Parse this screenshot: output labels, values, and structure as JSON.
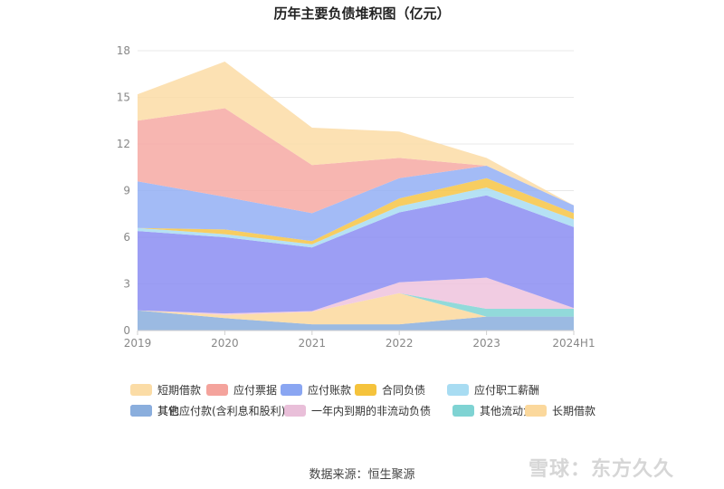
{
  "chart_data": {
    "type": "area",
    "title": "历年主要负债堆积图（亿元）",
    "categories": [
      "2019",
      "2020",
      "2021",
      "2022",
      "2023",
      "2024H1"
    ],
    "ylim": [
      0,
      18
    ],
    "yticks": [
      0,
      3,
      6,
      9,
      12,
      15,
      18
    ],
    "grid": true,
    "legend_position": "bottom",
    "series": [
      {
        "name": "其它",
        "color": "#8aaedd",
        "values": [
          1.3,
          0.8,
          0.4,
          0.4,
          0.9,
          0.9
        ]
      },
      {
        "name": "长期借款",
        "color": "#fbd89c",
        "values": [
          0.0,
          0.2,
          0.8,
          2.0,
          0.0,
          0.0
        ]
      },
      {
        "name": "其他流动负债",
        "color": "#7fd3d3",
        "values": [
          0.0,
          0.0,
          0.0,
          0.0,
          0.5,
          0.5
        ]
      },
      {
        "name": "一年内到期的非流动负债",
        "color": "#eec3dd",
        "values": [
          0.0,
          0.1,
          0.05,
          0.7,
          2.0,
          0.05
        ]
      },
      {
        "name": "其他应付款(含利息和股利)",
        "color": "#8b8df2",
        "values": [
          5.1,
          4.9,
          4.1,
          4.5,
          5.3,
          5.2
        ]
      },
      {
        "name": "应付职工薪酬",
        "color": "#a8dcf2",
        "values": [
          0.2,
          0.2,
          0.2,
          0.4,
          0.5,
          0.5
        ]
      },
      {
        "name": "合同负债",
        "color": "#f6c445",
        "values": [
          0.0,
          0.3,
          0.2,
          0.5,
          0.6,
          0.4
        ]
      },
      {
        "name": "应付账款",
        "color": "#93aff5",
        "values": [
          3.0,
          2.1,
          1.8,
          1.3,
          0.8,
          0.5
        ]
      },
      {
        "name": "应付票据",
        "color": "#f6a9a3",
        "values": [
          3.9,
          5.7,
          3.1,
          1.3,
          0.0,
          0.0
        ]
      },
      {
        "name": "短期借款",
        "color": "#fbdca6",
        "values": [
          1.7,
          3.0,
          2.4,
          1.7,
          0.5,
          0.0
        ]
      }
    ],
    "xlabel": "",
    "ylabel": ""
  },
  "legend": [
    {
      "label": "短期借款",
      "color": "#fbdca6"
    },
    {
      "label": "应付票据",
      "color": "#f4a39c"
    },
    {
      "label": "应付账款",
      "color": "#8aa6f2"
    },
    {
      "label": "合同负债",
      "color": "#f5c33c"
    },
    {
      "label": "应付职工薪酬",
      "color": "#a8dcf2"
    },
    {
      "label": "其他应付款(含利息和股利)",
      "color": "#7b7de8"
    },
    {
      "label": "一年内到期的非流动负债",
      "color": "#e9bfd9"
    },
    {
      "label": "其他流动负债",
      "color": "#7fd3d3"
    },
    {
      "label": "长期借款",
      "color": "#fbd89c"
    },
    {
      "label": "其它",
      "color": "#8aaedd"
    }
  ],
  "source": "数据来源：恒生聚源",
  "watermark": "雪球：东方久久"
}
